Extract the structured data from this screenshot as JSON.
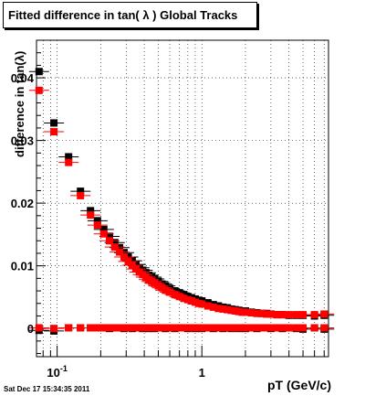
{
  "title": "Fitted difference in tan( λ )  Global Tracks",
  "timestamp": "Sat Dec 17 15:34:35 2011",
  "chart_data": {
    "type": "scatter",
    "title": "Fitted difference in tan( λ )  Global Tracks",
    "xlabel": "pT (GeV/c)",
    "ylabel": "difference in tan(λ)",
    "xscale": "log",
    "xlim": [
      0.072,
      7.5
    ],
    "ylim": [
      -0.0045,
      0.046
    ],
    "grid": true,
    "x_ticks": [
      {
        "value": 0.1,
        "label": "10",
        "exp": "-1"
      },
      {
        "value": 1,
        "label": "1",
        "exp": ""
      }
    ],
    "y_ticks": [
      {
        "value": 0,
        "label": "0"
      },
      {
        "value": 0.01,
        "label": "0.01"
      },
      {
        "value": 0.02,
        "label": "0.02"
      },
      {
        "value": 0.03,
        "label": "0.03"
      },
      {
        "value": 0.04,
        "label": "0.04"
      }
    ],
    "x": [
      0.075,
      0.095,
      0.12,
      0.145,
      0.17,
      0.19,
      0.21,
      0.23,
      0.25,
      0.27,
      0.29,
      0.31,
      0.33,
      0.35,
      0.37,
      0.39,
      0.41,
      0.43,
      0.45,
      0.47,
      0.5,
      0.53,
      0.56,
      0.6,
      0.65,
      0.7,
      0.75,
      0.8,
      0.85,
      0.9,
      0.95,
      1.0,
      1.1,
      1.2,
      1.3,
      1.4,
      1.5,
      1.6,
      1.7,
      1.8,
      1.9,
      2.0,
      2.2,
      2.4,
      2.6,
      2.8,
      3.0,
      3.3,
      3.6,
      4.0,
      4.5,
      5.0,
      6.0,
      7.0
    ],
    "series": [
      {
        "color": "#000000",
        "values": [
          0.041,
          0.0328,
          0.0274,
          0.0219,
          0.0188,
          0.0172,
          0.0158,
          0.0147,
          0.0137,
          0.0129,
          0.0121,
          0.0114,
          0.0108,
          0.0102,
          0.0097,
          0.0093,
          0.0089,
          0.0085,
          0.0082,
          0.0079,
          0.0075,
          0.0071,
          0.0068,
          0.0064,
          0.006,
          0.0057,
          0.0054,
          0.0051,
          0.0049,
          0.0047,
          0.0045,
          0.0044,
          0.0041,
          0.0038,
          0.0036,
          0.0034,
          0.0033,
          0.0031,
          0.003,
          0.0029,
          0.0028,
          0.0028,
          0.0026,
          0.0025,
          0.0024,
          0.0024,
          0.0023,
          0.0022,
          0.0022,
          0.0021,
          0.0021,
          0.0021,
          0.002,
          0.0021
        ]
      },
      {
        "color": "#ff0000",
        "values": [
          0.038,
          0.0314,
          0.0265,
          0.0212,
          0.0181,
          0.0165,
          0.0151,
          0.014,
          0.013,
          0.0122,
          0.0114,
          0.0107,
          0.0101,
          0.0095,
          0.009,
          0.0086,
          0.0082,
          0.0078,
          0.0075,
          0.0072,
          0.0068,
          0.0065,
          0.0061,
          0.0058,
          0.0054,
          0.0051,
          0.0048,
          0.0046,
          0.0044,
          0.0042,
          0.004,
          0.0039,
          0.0036,
          0.0034,
          0.0032,
          0.0031,
          0.003,
          0.0029,
          0.0028,
          0.0027,
          0.0026,
          0.0026,
          0.0025,
          0.0024,
          0.0024,
          0.0023,
          0.0023,
          0.0022,
          0.0022,
          0.0022,
          0.0022,
          0.0022,
          0.0022,
          0.0023
        ]
      },
      {
        "color": "#000000",
        "values": [
          -0.0003,
          -0.0004,
          0.0001,
          0.0001,
          0.0001,
          0.0001,
          0.0001,
          0.0,
          0.0001,
          0.0001,
          0.0,
          0.0001,
          0.0,
          0.0001,
          0.0001,
          0.0,
          0.0001,
          0.0,
          0.0001,
          0.0,
          0.0001,
          0.0001,
          0.0,
          0.0001,
          0.0,
          0.0001,
          0.0001,
          0.0,
          0.0001,
          0.0,
          0.0001,
          0.0,
          0.0001,
          0.0,
          0.0001,
          0.0,
          0.0001,
          0.0,
          0.0001,
          0.0,
          0.0001,
          0.0,
          0.0001,
          0.0,
          0.0001,
          0.0001,
          0.0,
          0.0001,
          0.0,
          0.0001,
          0.0,
          -0.0001,
          0.0001,
          -0.0001
        ]
      },
      {
        "color": "#ff0000",
        "values": [
          0.0001,
          0.0,
          0.0001,
          0.0001,
          0.0001,
          0.0001,
          0.0001,
          0.0001,
          0.0001,
          0.0001,
          0.0001,
          0.0001,
          0.0001,
          0.0001,
          0.0001,
          0.0001,
          0.0001,
          0.0001,
          0.0001,
          0.0001,
          0.0001,
          0.0001,
          0.0001,
          0.0001,
          0.0001,
          0.0001,
          0.0001,
          0.0001,
          0.0001,
          0.0001,
          0.0001,
          0.0001,
          0.0001,
          0.0001,
          0.0001,
          0.0001,
          0.0001,
          0.0001,
          0.0001,
          0.0001,
          0.0001,
          0.0001,
          0.0001,
          0.0001,
          0.0001,
          0.0001,
          0.0001,
          0.0001,
          0.0001,
          0.0001,
          0.0001,
          0.0001,
          0.0001,
          0.0001
        ]
      }
    ]
  }
}
